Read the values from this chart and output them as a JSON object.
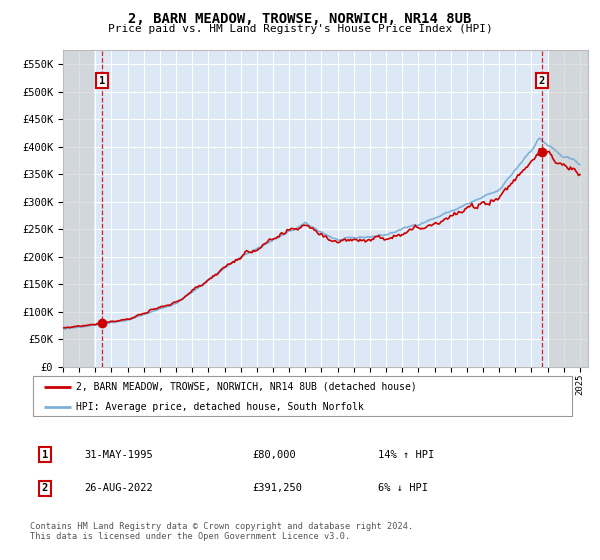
{
  "title": "2, BARN MEADOW, TROWSE, NORWICH, NR14 8UB",
  "subtitle": "Price paid vs. HM Land Registry's House Price Index (HPI)",
  "legend_line1": "2, BARN MEADOW, TROWSE, NORWICH, NR14 8UB (detached house)",
  "legend_line2": "HPI: Average price, detached house, South Norfolk",
  "transaction1_date": "31-MAY-1995",
  "transaction1_price": "£80,000",
  "transaction1_hpi": "14% ↑ HPI",
  "transaction2_date": "26-AUG-2022",
  "transaction2_price": "£391,250",
  "transaction2_hpi": "6% ↓ HPI",
  "footer": "Contains HM Land Registry data © Crown copyright and database right 2024.\nThis data is licensed under the Open Government Licence v3.0.",
  "hpi_color": "#7fb0d8",
  "price_color": "#cc0000",
  "background_plot": "#dce8f5",
  "ylim": [
    0,
    575000
  ],
  "yticks": [
    0,
    50000,
    100000,
    150000,
    200000,
    250000,
    300000,
    350000,
    400000,
    450000,
    500000,
    550000
  ],
  "xlim_start": 1993.0,
  "xlim_end": 2025.5,
  "transaction1_x": 1995.42,
  "transaction1_y": 80000,
  "transaction2_x": 2022.65,
  "transaction2_y": 391250,
  "hatch_left_end": 1994.9,
  "hatch_right_start": 2023.1
}
